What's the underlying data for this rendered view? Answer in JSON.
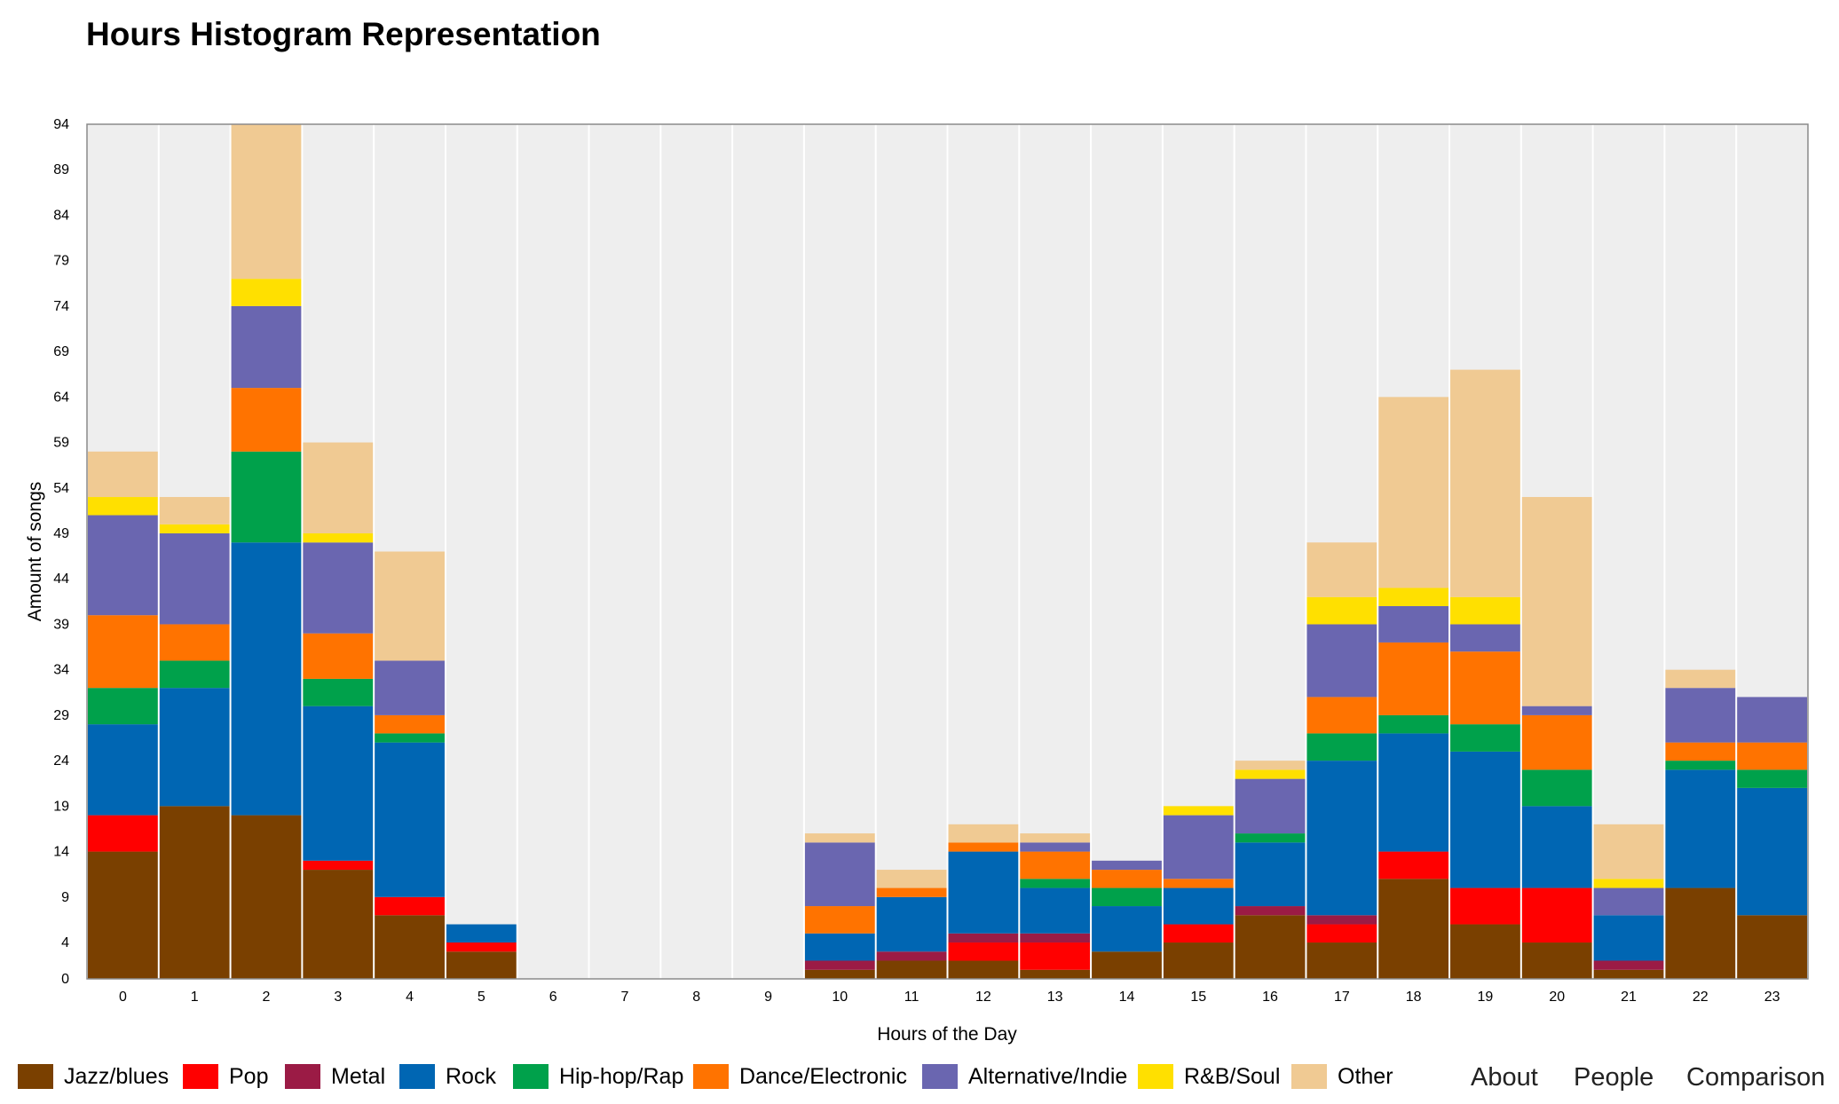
{
  "chart_data": {
    "type": "bar",
    "stacked": true,
    "title": "Hours Histogram Representation",
    "xlabel": "Hours of the Day",
    "ylabel": "Amount of songs",
    "categories": [
      "0",
      "1",
      "2",
      "3",
      "4",
      "5",
      "6",
      "7",
      "8",
      "9",
      "10",
      "11",
      "12",
      "13",
      "14",
      "15",
      "16",
      "17",
      "18",
      "19",
      "20",
      "21",
      "22",
      "23"
    ],
    "ylim": [
      0,
      94
    ],
    "yticks": [
      0,
      4,
      9,
      14,
      19,
      24,
      29,
      34,
      39,
      44,
      49,
      54,
      59,
      64,
      69,
      74,
      79,
      84,
      89,
      94
    ],
    "grid": "vertical",
    "legend_position": "bottom-left",
    "series": [
      {
        "name": "Jazz/blues",
        "color": "#7a4000",
        "values": [
          14,
          19,
          18,
          12,
          7,
          3,
          0,
          0,
          0,
          0,
          1,
          2,
          2,
          1,
          3,
          4,
          7,
          4,
          11,
          6,
          4,
          1,
          10,
          7
        ]
      },
      {
        "name": "Pop",
        "color": "#ff0000",
        "values": [
          4,
          0,
          0,
          1,
          2,
          1,
          0,
          0,
          0,
          0,
          0,
          0,
          2,
          3,
          0,
          2,
          0,
          2,
          3,
          4,
          6,
          0,
          0,
          0
        ]
      },
      {
        "name": "Metal",
        "color": "#9b1b45",
        "values": [
          0,
          0,
          0,
          0,
          0,
          0,
          0,
          0,
          0,
          0,
          1,
          1,
          1,
          1,
          0,
          0,
          1,
          1,
          0,
          0,
          0,
          1,
          0,
          0
        ]
      },
      {
        "name": "Rock",
        "color": "#0066b3",
        "values": [
          10,
          13,
          30,
          17,
          17,
          2,
          0,
          0,
          0,
          0,
          3,
          6,
          9,
          5,
          5,
          4,
          7,
          17,
          13,
          15,
          9,
          5,
          13,
          14
        ]
      },
      {
        "name": "Hip-hop/Rap",
        "color": "#00a14b",
        "values": [
          4,
          3,
          10,
          3,
          1,
          0,
          0,
          0,
          0,
          0,
          0,
          0,
          0,
          1,
          2,
          0,
          1,
          3,
          2,
          3,
          4,
          0,
          1,
          2
        ]
      },
      {
        "name": "Dance/Electronic",
        "color": "#ff7300",
        "values": [
          8,
          4,
          7,
          5,
          2,
          0,
          0,
          0,
          0,
          0,
          3,
          1,
          1,
          3,
          2,
          1,
          0,
          4,
          8,
          8,
          6,
          0,
          2,
          3
        ]
      },
      {
        "name": "Alternative/Indie",
        "color": "#6a66b0",
        "values": [
          11,
          10,
          9,
          10,
          6,
          0,
          0,
          0,
          0,
          0,
          7,
          0,
          0,
          1,
          1,
          7,
          6,
          8,
          4,
          3,
          1,
          3,
          6,
          5
        ]
      },
      {
        "name": "R&B/Soul",
        "color": "#ffe000",
        "values": [
          2,
          1,
          3,
          1,
          0,
          0,
          0,
          0,
          0,
          0,
          0,
          0,
          0,
          0,
          0,
          1,
          1,
          3,
          2,
          3,
          0,
          1,
          0,
          0
        ]
      },
      {
        "name": "Other",
        "color": "#f0ca93",
        "values": [
          5,
          3,
          17,
          10,
          12,
          0,
          0,
          0,
          0,
          0,
          1,
          2,
          2,
          1,
          0,
          0,
          1,
          6,
          21,
          25,
          23,
          6,
          2,
          0
        ]
      }
    ]
  },
  "nav": {
    "about": "About",
    "people": "People",
    "comparison": "Comparison"
  }
}
